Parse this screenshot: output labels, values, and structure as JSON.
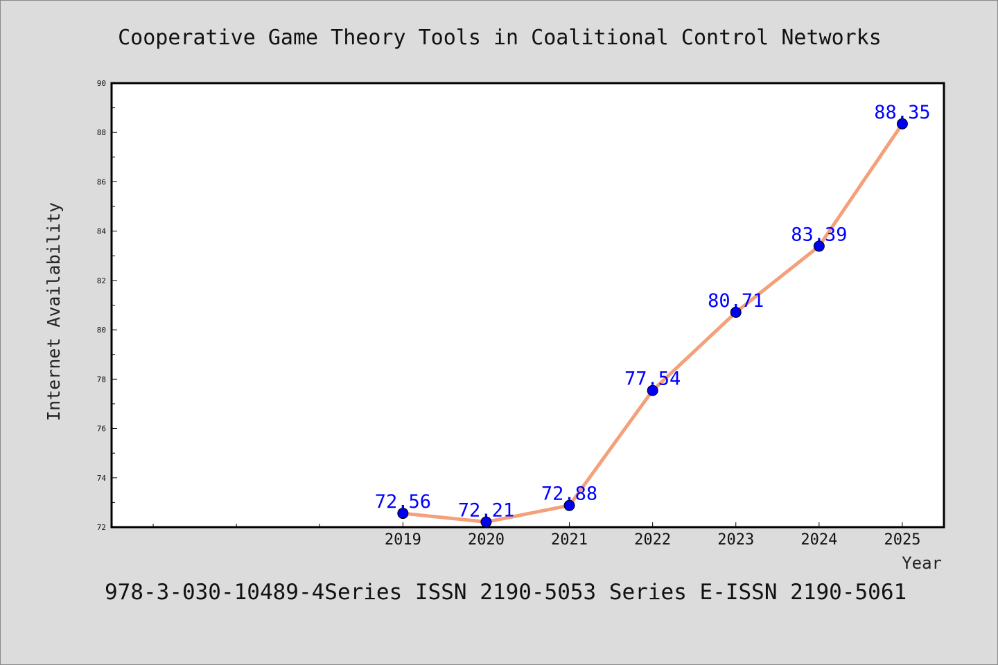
{
  "chart_data": {
    "type": "line",
    "title": "Cooperative Game Theory Tools in Coalitional Control Networks",
    "xlabel": "Year",
    "ylabel": "Internet Availability",
    "x": [
      "2019",
      "2020",
      "2021",
      "2022",
      "2023",
      "2024",
      "2025"
    ],
    "series": [
      {
        "values": [
          72.56,
          72.21,
          72.88,
          77.54,
          80.71,
          83.39,
          88.35
        ]
      }
    ],
    "data_labels": [
      "72.56",
      "72.21",
      "72.88",
      "77.54",
      "80.71",
      "83.39",
      "88.35"
    ],
    "ylim": [
      72,
      90
    ],
    "yticks": [
      72,
      74,
      76,
      78,
      80,
      82,
      84,
      86,
      88,
      90
    ],
    "xlim": [
      2015.5,
      2025.5
    ],
    "grid": false,
    "legend": "none",
    "colors": {
      "line": "#f4a07a",
      "marker": "#0000ee",
      "label": "#0000ff",
      "background": "#dcdcdc",
      "plot_area": "#ffffff"
    }
  },
  "footer": "978-3-030-10489-4Series ISSN 2190-5053 Series E-ISSN 2190-5061"
}
